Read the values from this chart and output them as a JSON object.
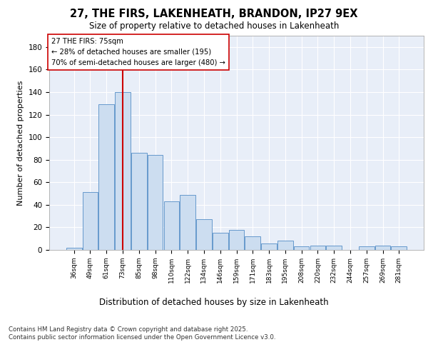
{
  "title1": "27, THE FIRS, LAKENHEATH, BRANDON, IP27 9EX",
  "title2": "Size of property relative to detached houses in Lakenheath",
  "xlabel": "Distribution of detached houses by size in Lakenheath",
  "ylabel": "Number of detached properties",
  "categories": [
    "36sqm",
    "49sqm",
    "61sqm",
    "73sqm",
    "85sqm",
    "98sqm",
    "110sqm",
    "122sqm",
    "134sqm",
    "146sqm",
    "159sqm",
    "171sqm",
    "183sqm",
    "195sqm",
    "208sqm",
    "220sqm",
    "232sqm",
    "244sqm",
    "257sqm",
    "269sqm",
    "281sqm"
  ],
  "values": [
    2,
    51,
    129,
    140,
    86,
    84,
    43,
    49,
    27,
    15,
    18,
    12,
    6,
    8,
    3,
    4,
    4,
    0,
    3,
    4,
    3
  ],
  "bar_color": "#ccddf0",
  "bar_edge_color": "#6699cc",
  "red_line_x": 3,
  "red_line_color": "#cc0000",
  "annotation_text": "27 THE FIRS: 75sqm\n← 28% of detached houses are smaller (195)\n70% of semi-detached houses are larger (480) →",
  "annotation_box_color": "#ffffff",
  "annotation_box_edge": "#cc0000",
  "ylim": [
    0,
    190
  ],
  "yticks": [
    0,
    20,
    40,
    60,
    80,
    100,
    120,
    140,
    160,
    180
  ],
  "bg_color": "#e8eef8",
  "grid_color": "#ffffff",
  "footer": "Contains HM Land Registry data © Crown copyright and database right 2025.\nContains public sector information licensed under the Open Government Licence v3.0."
}
